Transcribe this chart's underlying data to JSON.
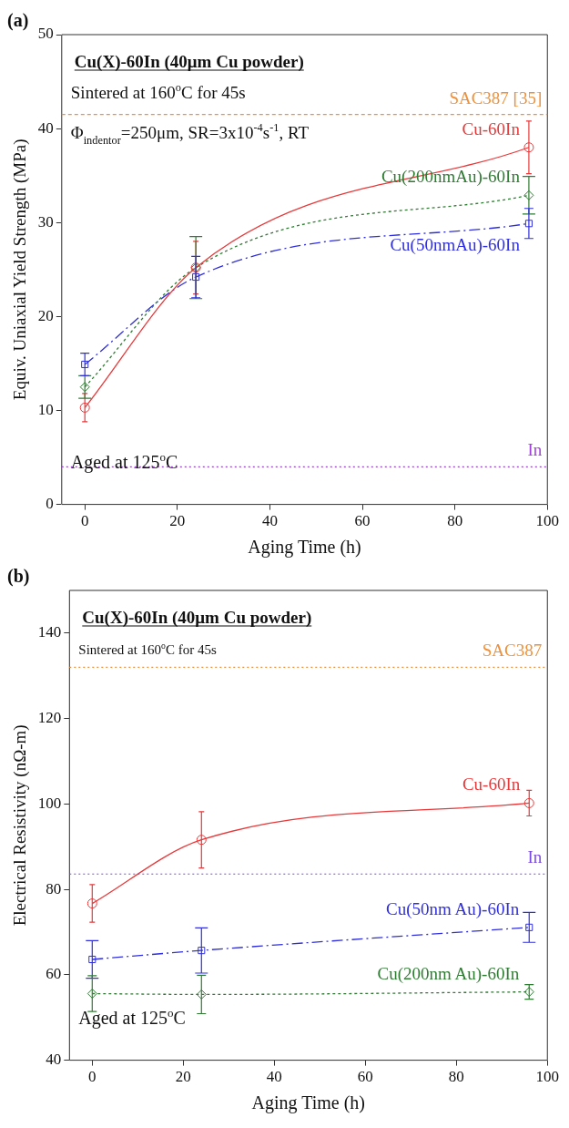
{
  "chart_data": [
    {
      "type": "line",
      "title": "(a)",
      "xlabel": "Aging Time (h)",
      "ylabel": "Equiv. Uniaxial Yield Strength (MPa)",
      "xlim": [
        -5,
        100
      ],
      "xticks": [
        0,
        20,
        40,
        60,
        80,
        100
      ],
      "ylim": [
        0,
        50
      ],
      "yticks": [
        0,
        10,
        20,
        30,
        40,
        50
      ],
      "grid": false,
      "legend": false,
      "annotations": [
        "Cu(X)-60In (40μm Cu powder)",
        "Sintered at 160$^{o}$C for 45s",
        "Φ$_{indentor}$=250μm, SR=3x10$^{-4}$s$^{-1}$, RT",
        "Aged at 125$^{o}$C"
      ],
      "ref_lines": [
        {
          "axis": "y",
          "value": 41.5,
          "label": "SAC387 [35]",
          "color": "#f0913a",
          "line_style": "dashed"
        },
        {
          "axis": "y",
          "value": 4.0,
          "label": "In",
          "color": "#a23fd9",
          "line_style": "dotted"
        }
      ],
      "series": [
        {
          "name": "Cu-60In",
          "color": "#e8393a",
          "x": [
            0,
            24,
            96
          ],
          "values": [
            10.3,
            25.2,
            38.0
          ],
          "errors": [
            1.5,
            2.8,
            2.8
          ],
          "marker": "circle",
          "line_style": "solid"
        },
        {
          "name": "Cu(200nmAu)-60In",
          "color": "#2e7d32",
          "x": [
            0,
            24,
            96
          ],
          "values": [
            12.5,
            25.2,
            32.9
          ],
          "errors": [
            1.2,
            3.3,
            2.0
          ],
          "marker": "diamond",
          "line_style": "dotted"
        },
        {
          "name": "Cu(50nmAu)-60In",
          "color": "#2f2fe0",
          "x": [
            0,
            24,
            96
          ],
          "values": [
            14.9,
            24.2,
            29.9
          ],
          "errors": [
            1.2,
            2.2,
            1.6
          ],
          "marker": "square",
          "line_style": "dashed"
        }
      ]
    },
    {
      "type": "line",
      "title": "(b)",
      "xlabel": "Aging Time (h)",
      "ylabel": "Electrical Resistivity (nΩ-m)",
      "xlim": [
        -5,
        100
      ],
      "xticks": [
        0,
        20,
        40,
        60,
        80,
        100
      ],
      "ylim": [
        40,
        150
      ],
      "yticks": [
        40,
        60,
        80,
        100,
        120,
        140
      ],
      "grid": false,
      "legend": false,
      "annotations": [
        "Cu(X)-60In (40μm Cu powder)",
        "Sintered at 160$^{o}$C for 45s",
        "Aged at 125$^{o}$C"
      ],
      "ref_lines": [
        {
          "axis": "y",
          "value": 132,
          "label": "SAC387",
          "color": "#f0913a",
          "line_style": "dotted"
        },
        {
          "axis": "y",
          "value": 83.6,
          "label": "In",
          "color": "#7a4ae0",
          "line_style": "dotted"
        }
      ],
      "series": [
        {
          "name": "Cu-60In",
          "color": "#e8393a",
          "x": [
            0,
            24,
            96
          ],
          "values": [
            76.7,
            91.6,
            100.2
          ],
          "errors": [
            4.4,
            6.6,
            3.0
          ],
          "marker": "circle",
          "line_style": "solid"
        },
        {
          "name": "Cu(50nm Au)-60In",
          "color": "#2f2fe0",
          "x": [
            0,
            24,
            96
          ],
          "values": [
            63.6,
            65.7,
            71.1
          ],
          "errors": [
            4.4,
            5.3,
            3.5
          ],
          "marker": "square",
          "line_style": "dashed"
        },
        {
          "name": "Cu(200nm Au)-60In",
          "color": "#2e7d32",
          "x": [
            0,
            24,
            96
          ],
          "values": [
            55.6,
            55.4,
            56.0
          ],
          "errors": [
            4.2,
            4.5,
            1.7
          ],
          "marker": "diamond",
          "line_style": "dotted"
        }
      ]
    }
  ]
}
